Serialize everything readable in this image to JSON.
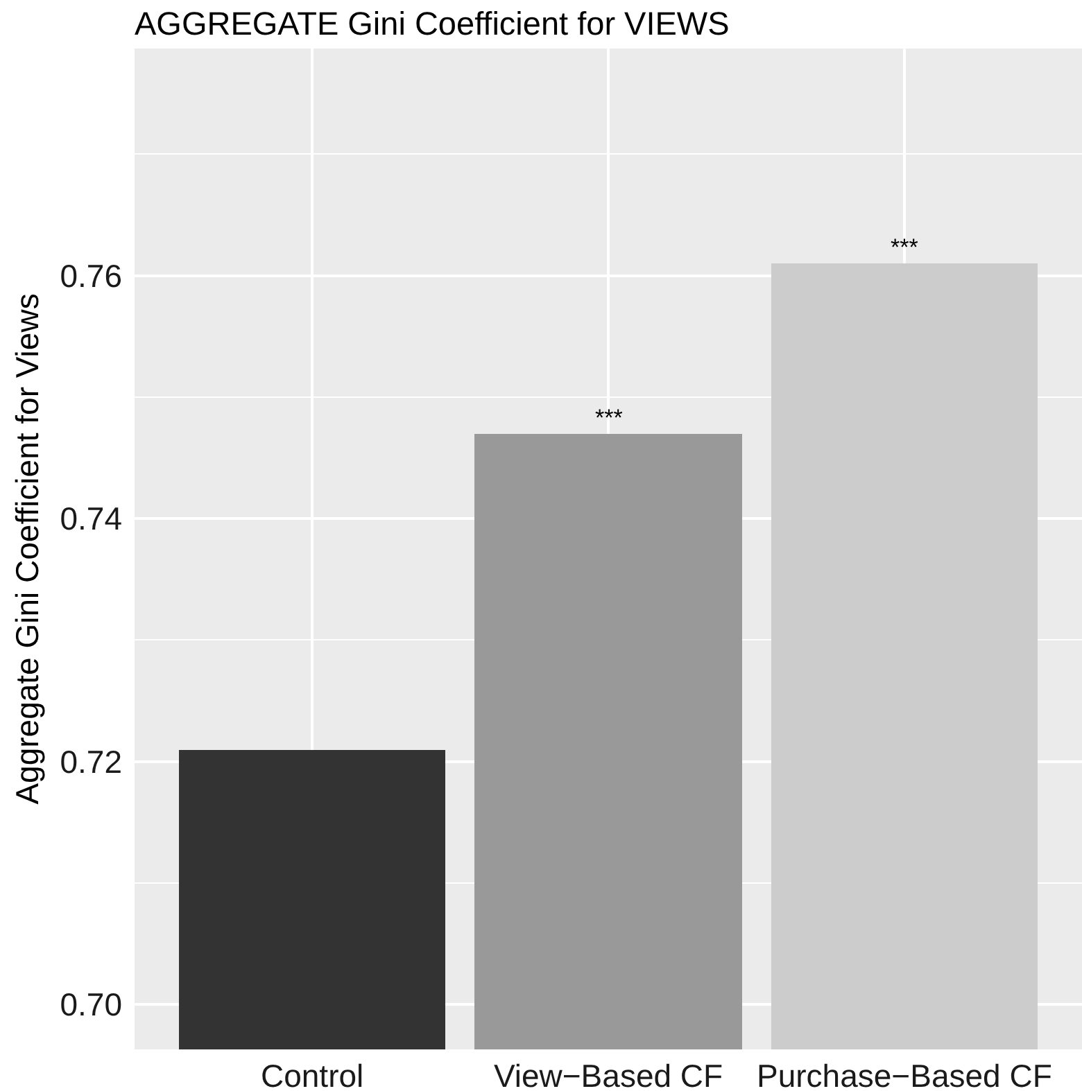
{
  "chart_data": {
    "type": "bar",
    "title": "AGGREGATE Gini Coefficient for VIEWS",
    "ylabel": "Aggregate Gini Coefficient for Views",
    "categories": [
      "Control",
      "View−Based CF",
      "Purchase−Based CF"
    ],
    "values": [
      0.721,
      0.747,
      0.761
    ],
    "colors": [
      "#333333",
      "#999999",
      "#cccccc"
    ],
    "ylim": [
      0.6963,
      0.7787
    ],
    "yticks": [
      {
        "value": 0.7,
        "label": "0.70"
      },
      {
        "value": 0.71,
        "label": null
      },
      0.72,
      {
        "value": 0.73,
        "label": null
      },
      0.74,
      {
        "value": 0.75,
        "label": null
      },
      0.76,
      {
        "value": 0.77,
        "label": null
      }
    ],
    "grid": true,
    "annotations": [
      {
        "text": "***",
        "x": "View−Based CF",
        "y": 0.747
      },
      {
        "text": "***",
        "x": "Purchase−Based CF",
        "y": 0.761
      }
    ]
  }
}
